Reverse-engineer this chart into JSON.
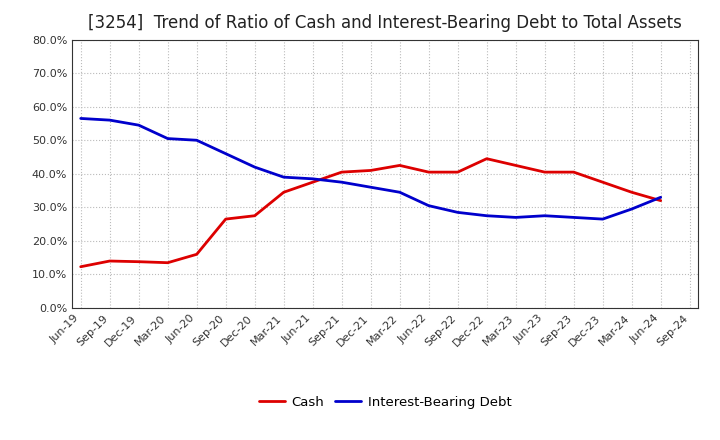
{
  "title": "[3254]  Trend of Ratio of Cash and Interest-Bearing Debt to Total Assets",
  "x_labels": [
    "Jun-19",
    "Sep-19",
    "Dec-19",
    "Mar-20",
    "Jun-20",
    "Sep-20",
    "Dec-20",
    "Mar-21",
    "Jun-21",
    "Sep-21",
    "Dec-21",
    "Mar-22",
    "Jun-22",
    "Sep-22",
    "Dec-22",
    "Mar-23",
    "Jun-23",
    "Sep-23",
    "Dec-23",
    "Mar-24",
    "Jun-24",
    "Sep-24"
  ],
  "cash": [
    0.123,
    0.14,
    0.138,
    0.135,
    0.16,
    0.265,
    0.275,
    0.345,
    0.375,
    0.405,
    0.41,
    0.425,
    0.405,
    0.405,
    0.445,
    0.425,
    0.405,
    0.405,
    0.375,
    0.345,
    0.32,
    null
  ],
  "ibd": [
    0.565,
    0.56,
    0.545,
    0.505,
    0.5,
    0.46,
    0.42,
    0.39,
    0.385,
    0.375,
    0.36,
    0.345,
    0.305,
    0.285,
    0.275,
    0.27,
    0.275,
    0.27,
    0.265,
    0.295,
    0.33,
    null
  ],
  "cash_color": "#dd0000",
  "ibd_color": "#0000cc",
  "ylim": [
    0.0,
    0.8
  ],
  "yticks": [
    0.0,
    0.1,
    0.2,
    0.3,
    0.4,
    0.5,
    0.6,
    0.7,
    0.8
  ],
  "bg_color": "#ffffff",
  "plot_bg_color": "#ffffff",
  "grid_color": "#bbbbbb",
  "title_fontsize": 12,
  "tick_fontsize": 8,
  "legend_fontsize": 9.5,
  "line_width": 2.0
}
